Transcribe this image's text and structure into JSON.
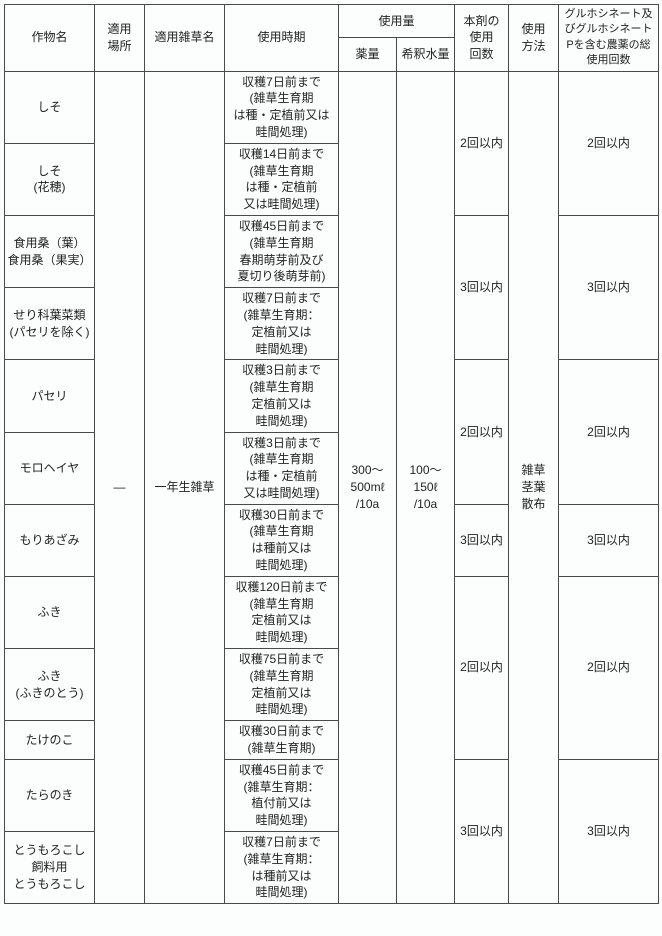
{
  "headers": {
    "crop": "作物名",
    "place": "適用\n場所",
    "weed": "適用雑草名",
    "timing": "使用時期",
    "amount_group": "使用量",
    "dose": "薬量",
    "water": "希釈水量",
    "count": "本剤の\n使用\n回数",
    "method": "使用\n方法",
    "total": "グルホシネート及びグルホシネートPを含む農薬の総使用回数"
  },
  "shared": {
    "place": "—",
    "weed": "一年生雑草",
    "dose": "300～\n500mℓ\n/10a",
    "water": "100～\n150ℓ\n/10a",
    "method": "雑草\n茎葉\n散布"
  },
  "groups": [
    {
      "count": "2回以内",
      "total": "2回以内",
      "rows": [
        {
          "crop": "しそ",
          "timing": "収穫7日前まで\n(雑草生育期\nは種・定植前又は\n畦間処理)"
        },
        {
          "crop": "しそ\n(花穂)",
          "timing": "収穫14日前まで\n(雑草生育期\nは種・定植前\n又は畦間処理)"
        }
      ]
    },
    {
      "count": "3回以内",
      "total": "3回以内",
      "rows": [
        {
          "crop": "食用桑（葉）\n食用桑（果実）",
          "timing": "収穫45日前まで\n(雑草生育期\n春期萌芽前及び\n夏切り後萌芽前)"
        },
        {
          "crop": "せり科葉菜類\n(パセリを除く)",
          "timing": "収穫7日前まで\n(雑草生育期：\n定植前又は\n畦間処理)"
        }
      ]
    },
    {
      "count": "2回以内",
      "total": "2回以内",
      "rows": [
        {
          "crop": "パセリ",
          "timing": "収穫3日前まで\n(雑草生育期\n定植前又は\n畦間処理)"
        },
        {
          "crop": "モロヘイヤ",
          "timing": "収穫3日前まで\n(雑草生育期\nは種・定植前\n又は畦間処理)"
        }
      ]
    },
    {
      "count": "3回以内",
      "total": "3回以内",
      "rows": [
        {
          "crop": "もりあざみ",
          "timing": "収穫30日前まで\n(雑草生育期\nは種前又は\n畦間処理)"
        }
      ]
    },
    {
      "count": "2回以内",
      "total": "2回以内",
      "rows": [
        {
          "crop": "ふき",
          "timing": "収穫120日前まで\n(雑草生育期\n定植前又は\n畦間処理)"
        },
        {
          "crop": "ふき\n(ふきのとう)",
          "timing": "収穫75日前まで\n(雑草生育期\n定植前又は\n畦間処理)"
        },
        {
          "crop": "たけのこ",
          "timing": "収穫30日前まで\n(雑草生育期)"
        }
      ]
    },
    {
      "count": "3回以内",
      "total": "3回以内",
      "rows": [
        {
          "crop": "たらのき",
          "timing": "収穫45日前まで\n(雑草生育期：\n植付前又は\n畦間処理)"
        },
        {
          "crop": "とうもろこし\n飼料用\nとうもろこし",
          "timing": "収穫7日前まで\n(雑草生育期：\nは種前又は\n畦間処理)"
        }
      ]
    }
  ]
}
